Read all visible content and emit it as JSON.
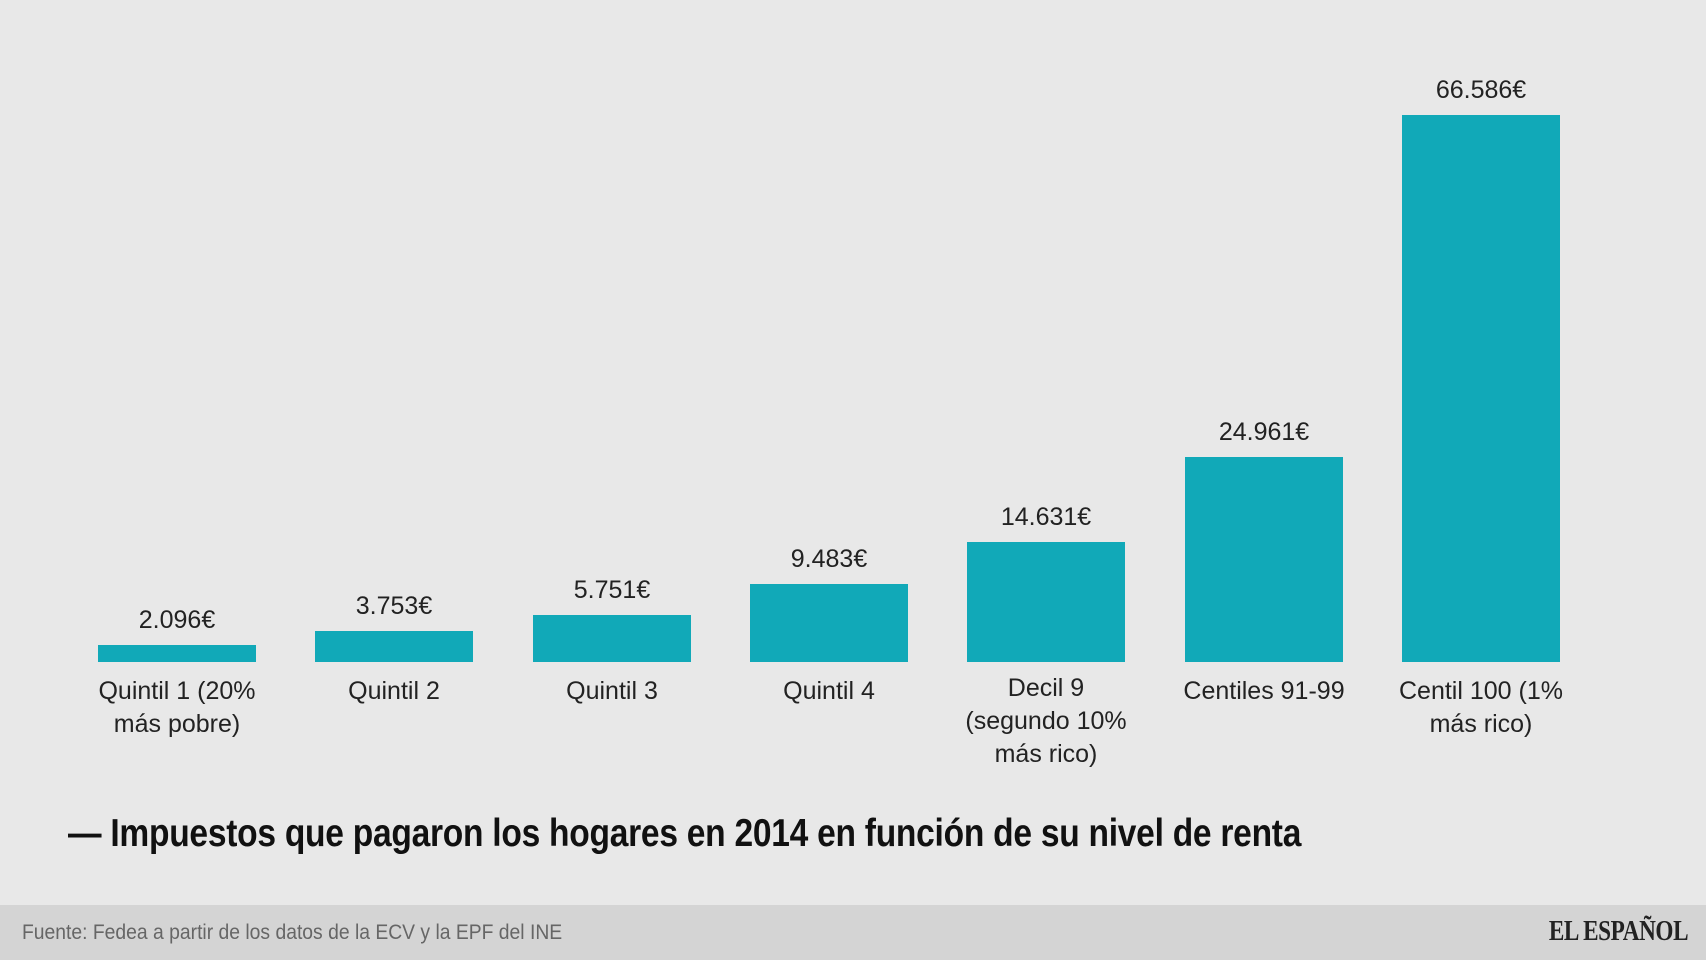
{
  "chart_data": {
    "type": "bar",
    "title": "— Impuestos que pagaron los hogares en 2014 en función de su nivel de renta",
    "xlabel": "",
    "ylabel": "",
    "categories": [
      "Quintil 1 (20% más pobre)",
      "Quintil 2",
      "Quintil 3",
      "Quintil 4",
      "Decil 9 (segundo 10% más rico)",
      "Centiles 91-99",
      "Centil 100 (1% más rico)"
    ],
    "category_lines": [
      [
        "Quintil 1 (20%",
        "más pobre)"
      ],
      [
        "Quintil 2"
      ],
      [
        "Quintil 3"
      ],
      [
        "Quintil 4"
      ],
      [
        "Decil 9",
        "(segundo 10%",
        "más rico)"
      ],
      [
        "Centiles 91-99"
      ],
      [
        "Centil 100 (1%",
        "más rico)"
      ]
    ],
    "values": [
      2096,
      3753,
      5751,
      9483,
      14631,
      24961,
      66586
    ],
    "value_labels": [
      "2.096€",
      "3.753€",
      "5.751€",
      "9.483€",
      "14.631€",
      "24.961€",
      "66.586€"
    ],
    "ylim": [
      0,
      66586
    ],
    "grid": false,
    "legend": "none",
    "bar_color": "#11a9b8"
  },
  "footer": {
    "source": "Fuente: Fedea a partir de los datos de la ECV y la EPF del INE",
    "logo": "EL ESPAÑOL"
  }
}
